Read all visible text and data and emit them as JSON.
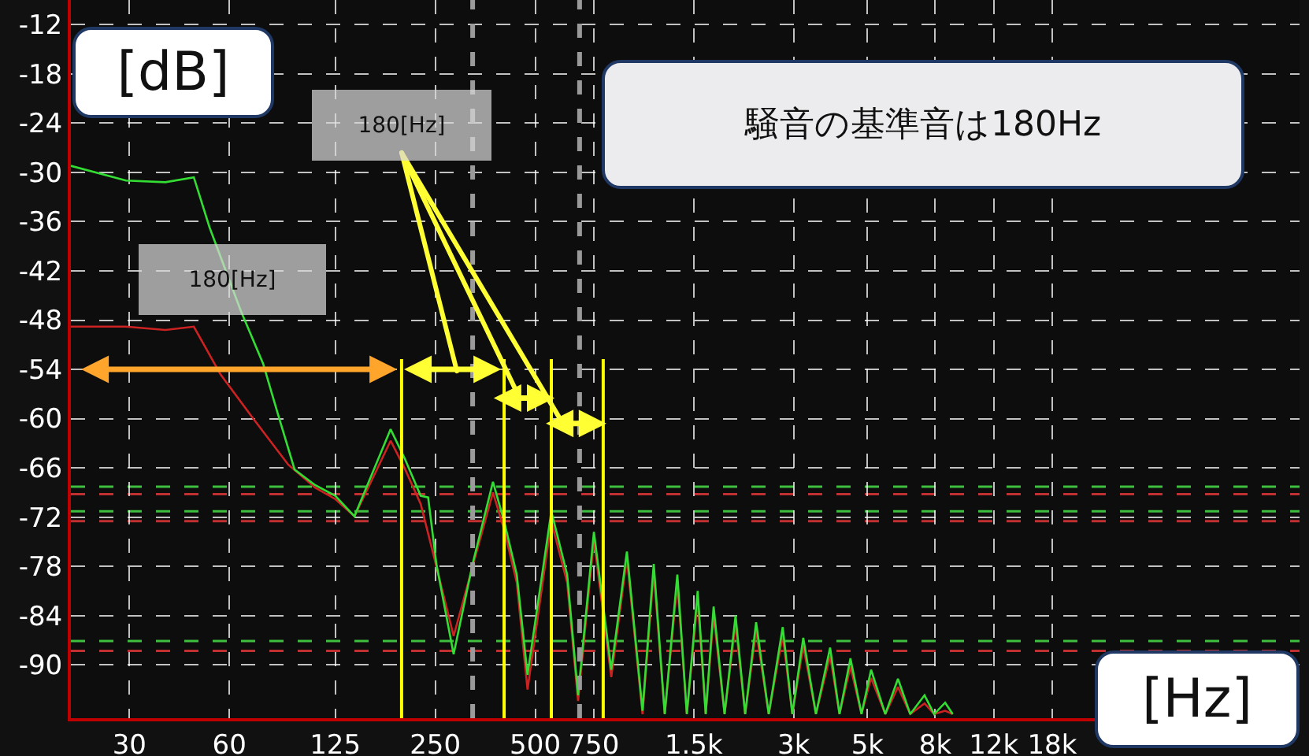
{
  "chart_data": {
    "type": "line",
    "title": "騒音の基準音は180Hz",
    "xlabel": "[Hz]",
    "ylabel": "[dB]",
    "annotations": [
      "180[Hz]",
      "180[Hz]"
    ],
    "log": "x",
    "grid": true,
    "line_style": "solid",
    "xlim": [
      20,
      100000
    ],
    "ylim": [
      -96.5,
      -9
    ],
    "xticks": [
      30,
      60,
      125,
      250,
      500,
      750,
      {
        "value": 1500,
        "label": "1.5k"
      },
      {
        "value": 3000,
        "label": "3k"
      },
      {
        "value": 5000,
        "label": "5k"
      },
      {
        "value": 8000,
        "label": "8k"
      },
      {
        "value": 12000,
        "label": "12k"
      },
      {
        "value": 18000,
        "label": "18k"
      }
    ],
    "yticks": [
      -12,
      -18,
      -24,
      -30,
      -36,
      -42,
      -48,
      -54,
      -60,
      -66,
      -72,
      -78,
      -84,
      -90
    ],
    "series": [
      {
        "color": "#cc2222",
        "x": [
          20,
          29.3,
          38.5,
          46.9,
          56.4,
          70.2,
          90.2,
          108.7,
          125,
          142.8,
          183.5,
          202,
          226,
          252,
          284,
          324,
          373,
          403,
          440,
          474,
          559,
          624,
          673,
          751,
          847,
          944,
          1052,
          1137,
          1227,
          1339,
          1430,
          1542,
          1630,
          1722,
          1858,
          2005,
          2143,
          2312,
          2523,
          2780,
          2972,
          3206,
          3500,
          3862,
          4121,
          4446,
          4800,
          5129,
          5662,
          6180,
          6730,
          7430,
          7943,
          8570,
          9036
        ],
        "values": [
          -48.8,
          -48.8,
          -49.2,
          -48.8,
          -54.6,
          -59.8,
          -65.6,
          -68.4,
          -69.8,
          -71.9,
          -62.7,
          -66,
          -70.4,
          -78,
          -86.5,
          -78,
          -69,
          -73.5,
          -80,
          -93,
          -72.5,
          -80,
          -94.4,
          -74.8,
          -91.5,
          -77,
          -96,
          -78.7,
          -96,
          -80,
          -96,
          -82,
          -96,
          -84,
          -96,
          -85,
          -96,
          -85.8,
          -96,
          -86.4,
          -96,
          -87.7,
          -96,
          -88.9,
          -96,
          -90.2,
          -96,
          -91.6,
          -96,
          -92.7,
          -96,
          -94.7,
          -96,
          -95.6,
          -96
        ]
      },
      {
        "color": "#33dd33",
        "x": [
          20,
          29.3,
          38.5,
          46.9,
          52.3,
          65,
          75.8,
          84.5,
          94.3,
          108.7,
          125,
          142.8,
          183.5,
          202,
          226,
          238,
          252,
          284,
          324,
          373,
          403,
          440,
          474,
          559,
          624,
          673,
          751,
          847,
          944,
          1052,
          1137,
          1227,
          1339,
          1430,
          1542,
          1630,
          1722,
          1858,
          2005,
          2143,
          2312,
          2523,
          2780,
          2972,
          3206,
          3500,
          3862,
          4121,
          4446,
          4800,
          5129,
          5662,
          6180,
          6730,
          7430,
          7943,
          8570,
          9036
        ],
        "values": [
          -29.2,
          -31,
          -31.2,
          -30.6,
          -36.7,
          -46.9,
          -53.3,
          -59.8,
          -66.2,
          -68.1,
          -69.4,
          -71.9,
          -61.3,
          -64.8,
          -69.4,
          -69.6,
          -77.7,
          -88.7,
          -77.7,
          -67.7,
          -72.5,
          -79,
          -91.2,
          -71.3,
          -79,
          -93.7,
          -73.8,
          -90.6,
          -76.2,
          -95.6,
          -77.7,
          -96,
          -79,
          -96,
          -81,
          -96,
          -82.9,
          -96,
          -84,
          -96,
          -84.8,
          -96,
          -85.4,
          -96,
          -86.7,
          -96,
          -87.9,
          -96,
          -89.2,
          -96,
          -90.6,
          -96,
          -91.7,
          -96,
          -93.7,
          -96,
          -94.6,
          -96
        ]
      }
    ],
    "ref_lines": [
      {
        "axis": "y",
        "value": -68.3,
        "color": "#3fbf3f",
        "line_style": "dashed"
      },
      {
        "axis": "y",
        "value": -69.2,
        "color": "#c03030",
        "line_style": "dashed"
      },
      {
        "axis": "y",
        "value": -71.3,
        "color": "#3fbf3f",
        "line_style": "dashed"
      },
      {
        "axis": "y",
        "value": -72.5,
        "color": "#c03030",
        "line_style": "dashed"
      },
      {
        "axis": "y",
        "value": -87.1,
        "color": "#3fbf3f",
        "line_style": "dashed"
      },
      {
        "axis": "y",
        "value": -88.3,
        "color": "#c03030",
        "line_style": "dashed"
      },
      {
        "axis": "x",
        "value": 324,
        "color": "#9a9a9a",
        "line_style": "dashed"
      },
      {
        "axis": "x",
        "value": 680,
        "color": "#9a9a9a",
        "line_style": "dashed"
      },
      {
        "axis": "x",
        "value": 198,
        "color": "#ffff00",
        "line_style": "solid"
      },
      {
        "axis": "x",
        "value": 403,
        "color": "#ffff00",
        "line_style": "solid"
      },
      {
        "axis": "x",
        "value": 559,
        "color": "#ffff00",
        "line_style": "solid"
      },
      {
        "axis": "x",
        "value": 801,
        "color": "#ffff00",
        "line_style": "solid"
      }
    ]
  }
}
